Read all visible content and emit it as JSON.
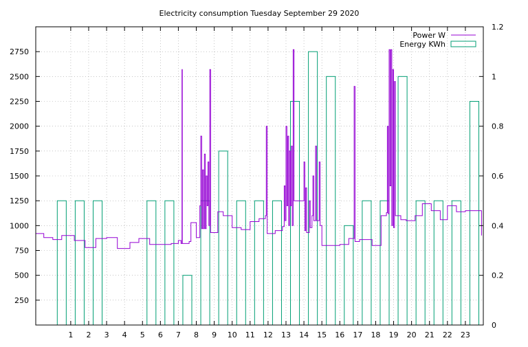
{
  "chart_data": {
    "type": "line",
    "title": "Electricity consumption Tuesday September 29 2020",
    "xlabel": "",
    "ylabel": "",
    "y2label": "",
    "xlim": [
      -0.95,
      24.0
    ],
    "ylim": [
      0,
      3000
    ],
    "y2lim": [
      0,
      1.2
    ],
    "grid": true,
    "legend_position": "top-right",
    "x_ticks": [
      "1",
      "2",
      "3",
      "4",
      "5",
      "6",
      "7",
      "8",
      "9",
      "10",
      "11",
      "12",
      "13",
      "14",
      "15",
      "16",
      "17",
      "18",
      "19",
      "20",
      "21",
      "22",
      "23"
    ],
    "y_ticks": [
      "250",
      "500",
      "750",
      "1000",
      "1250",
      "1500",
      "1750",
      "2000",
      "2250",
      "2500",
      "2750"
    ],
    "y2_ticks": [
      "0",
      "0.2",
      "0.4",
      "0.6",
      "0.8",
      "1",
      "1.2"
    ],
    "series": [
      {
        "name": "Power W",
        "color": "#9400d3",
        "axis": "y",
        "style": "step",
        "points": [
          [
            -0.95,
            920
          ],
          [
            -0.5,
            880
          ],
          [
            0,
            860
          ],
          [
            0.5,
            900
          ],
          [
            1.2,
            850
          ],
          [
            1.8,
            780
          ],
          [
            2.4,
            870
          ],
          [
            3.0,
            880
          ],
          [
            3.6,
            770
          ],
          [
            4.3,
            830
          ],
          [
            4.8,
            870
          ],
          [
            5.4,
            810
          ],
          [
            6.0,
            810
          ],
          [
            6.6,
            820
          ],
          [
            7.0,
            850
          ],
          [
            7.15,
            820
          ],
          [
            7.2,
            2570
          ],
          [
            7.22,
            820
          ],
          [
            7.6,
            840
          ],
          [
            7.7,
            1030
          ],
          [
            8.0,
            880
          ],
          [
            8.2,
            1200
          ],
          [
            8.25,
            1900
          ],
          [
            8.3,
            970
          ],
          [
            8.35,
            1560
          ],
          [
            8.4,
            970
          ],
          [
            8.45,
            1720
          ],
          [
            8.5,
            970
          ],
          [
            8.55,
            1500
          ],
          [
            8.6,
            1200
          ],
          [
            8.65,
            1640
          ],
          [
            8.7,
            1000
          ],
          [
            8.75,
            2570
          ],
          [
            8.8,
            930
          ],
          [
            9.2,
            1140
          ],
          [
            9.5,
            1100
          ],
          [
            10.0,
            980
          ],
          [
            10.5,
            960
          ],
          [
            11.0,
            1040
          ],
          [
            11.5,
            1070
          ],
          [
            11.85,
            1100
          ],
          [
            11.9,
            2000
          ],
          [
            11.95,
            920
          ],
          [
            12.4,
            950
          ],
          [
            12.8,
            990
          ],
          [
            12.9,
            1400
          ],
          [
            12.95,
            1050
          ],
          [
            13.0,
            2000
          ],
          [
            13.05,
            1200
          ],
          [
            13.1,
            1900
          ],
          [
            13.15,
            1000
          ],
          [
            13.2,
            1750
          ],
          [
            13.25,
            1200
          ],
          [
            13.3,
            1800
          ],
          [
            13.35,
            1000
          ],
          [
            13.4,
            2770
          ],
          [
            13.45,
            1250
          ],
          [
            13.7,
            1250
          ],
          [
            14.0,
            1640
          ],
          [
            14.05,
            950
          ],
          [
            14.1,
            1380
          ],
          [
            14.15,
            930
          ],
          [
            14.3,
            1250
          ],
          [
            14.35,
            980
          ],
          [
            14.45,
            1100
          ],
          [
            14.5,
            1500
          ],
          [
            14.55,
            1050
          ],
          [
            14.65,
            1800
          ],
          [
            14.7,
            1050
          ],
          [
            14.85,
            1640
          ],
          [
            14.9,
            1000
          ],
          [
            15.0,
            800
          ],
          [
            16.0,
            810
          ],
          [
            16.5,
            870
          ],
          [
            16.8,
            2400
          ],
          [
            16.85,
            840
          ],
          [
            17.1,
            860
          ],
          [
            17.8,
            800
          ],
          [
            18.3,
            1100
          ],
          [
            18.6,
            1130
          ],
          [
            18.65,
            2000
          ],
          [
            18.7,
            1120
          ],
          [
            18.75,
            2770
          ],
          [
            18.8,
            1400
          ],
          [
            18.85,
            2770
          ],
          [
            18.9,
            1000
          ],
          [
            18.95,
            2570
          ],
          [
            19.0,
            980
          ],
          [
            19.05,
            2450
          ],
          [
            19.1,
            1100
          ],
          [
            19.4,
            1060
          ],
          [
            19.7,
            1050
          ],
          [
            20.2,
            1100
          ],
          [
            20.6,
            1220
          ],
          [
            21.1,
            1150
          ],
          [
            21.6,
            1060
          ],
          [
            22.0,
            1200
          ],
          [
            22.5,
            1140
          ],
          [
            23.0,
            1150
          ],
          [
            23.9,
            900
          ]
        ]
      },
      {
        "name": "Energy KWh",
        "color": "#009e73",
        "axis": "y2",
        "style": "boxes",
        "points": [
          [
            0,
            0.5
          ],
          [
            1,
            0.5
          ],
          [
            2,
            0.5
          ],
          [
            5,
            0.5
          ],
          [
            6,
            0.5
          ],
          [
            7,
            0.2
          ],
          [
            8,
            0.5
          ],
          [
            9,
            0.7
          ],
          [
            10,
            0.5
          ],
          [
            11,
            0.5
          ],
          [
            12,
            0.5
          ],
          [
            13,
            0.9
          ],
          [
            14,
            1.1
          ],
          [
            15,
            1.0
          ],
          [
            16,
            0.4
          ],
          [
            17,
            0.5
          ],
          [
            18,
            0.5
          ],
          [
            19,
            1.0
          ],
          [
            20,
            0.5
          ],
          [
            21,
            0.5
          ],
          [
            22,
            0.5
          ],
          [
            23,
            0.9
          ]
        ]
      }
    ]
  }
}
